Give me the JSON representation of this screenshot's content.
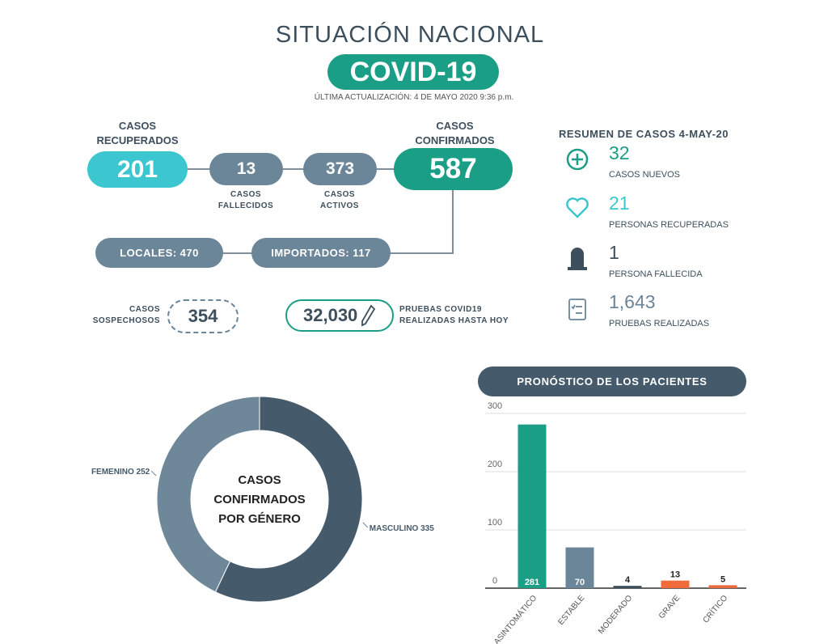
{
  "header": {
    "title": "SITUACIÓN NACIONAL",
    "badge": "COVID-19",
    "updated": "ÚLTIMA ACTUALIZACIÓN: 4 DE MAYO 2020 9:36 p.m."
  },
  "flow": {
    "recovered": {
      "label": "CASOS\nRECUPERADOS",
      "value": 201
    },
    "deaths": {
      "label": "CASOS\nFALLECIDOS",
      "value": 13
    },
    "active": {
      "label": "CASOS\nACTIVOS",
      "value": 373
    },
    "confirmed": {
      "label": "CASOS\nCONFIRMADOS",
      "value": 587
    },
    "local": "LOCALES: 470",
    "imported": "IMPORTADOS: 117",
    "suspected": {
      "label": "CASOS\nSOSPECHOSOS",
      "value": 354
    },
    "tests": {
      "label": "PRUEBAS COVID19\nREALIZADAS HASTA HOY",
      "value": "32,030"
    }
  },
  "summary": {
    "title": "RESUMEN DE CASOS 4-MAY-20",
    "items": [
      {
        "value": 32,
        "label": "CASOS NUEVOS"
      },
      {
        "value": 21,
        "label": "PERSONAS RECUPERADAS"
      },
      {
        "value": 1,
        "label": "PERSONA FALLECIDA"
      },
      {
        "value": "1,643",
        "label": "PRUEBAS REALIZADAS"
      }
    ]
  },
  "chart_data": [
    {
      "type": "pie",
      "title": "CASOS\nCONFIRMADOS\nPOR GÉNERO",
      "categories": [
        "MASCULINO",
        "FEMENINO"
      ],
      "values": [
        335,
        252
      ],
      "colors": [
        "#455a6a",
        "#6e8899"
      ]
    },
    {
      "type": "bar",
      "title": "PRONÓSTICO DE LOS PACIENTES",
      "categories": [
        "ASINTOMÁTICO",
        "ESTABLE",
        "MODERADO",
        "GRAVE",
        "CRÍTICO"
      ],
      "values": [
        281,
        70,
        4,
        13,
        5
      ],
      "colors": [
        "#1a9e86",
        "#6b8599",
        "#3d4f5d",
        "#f06a3a",
        "#e8683a"
      ],
      "ylim": [
        0,
        300
      ],
      "yticks": [
        0,
        100,
        200,
        300
      ],
      "grid": true
    }
  ]
}
